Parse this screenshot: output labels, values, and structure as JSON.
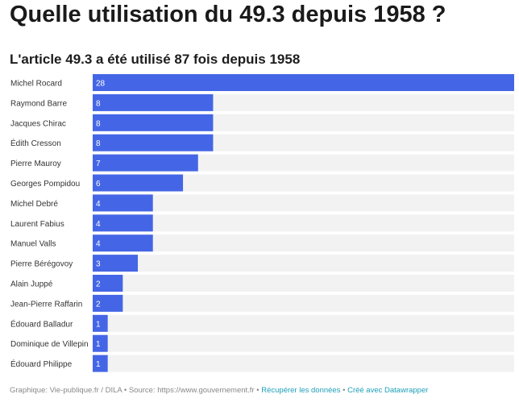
{
  "title": "Quelle utilisation du 49.3 depuis 1958 ?",
  "chart_data": {
    "type": "bar",
    "orientation": "horizontal",
    "title": "L'article 49.3 a été utilisé 87 fois depuis 1958",
    "categories": [
      "Michel Rocard",
      "Raymond Barre",
      "Jacques Chirac",
      "Édith Cresson",
      "Pierre Mauroy",
      "Georges Pompidou",
      "Michel Debré",
      "Laurent Fabius",
      "Manuel Valls",
      "Pierre Bérégovoy",
      "Alain Juppé",
      "Jean-Pierre Raffarin",
      "Édouard Balladur",
      "Dominique de Villepin",
      "Édouard Philippe"
    ],
    "values": [
      28,
      8,
      8,
      8,
      7,
      6,
      4,
      4,
      4,
      3,
      2,
      2,
      1,
      1,
      1
    ],
    "xlim": [
      0,
      28
    ],
    "bar_color": "#4466e6",
    "track_color": "#f2f2f2",
    "data_labels": true
  },
  "footer": {
    "credit": "Graphique: Vie-publique.fr / DILA • Source: https://www.gouvernement.fr • ",
    "get_data": "Récupérer les données",
    "sep": " • ",
    "made_with": "Créé avec Datawrapper"
  }
}
